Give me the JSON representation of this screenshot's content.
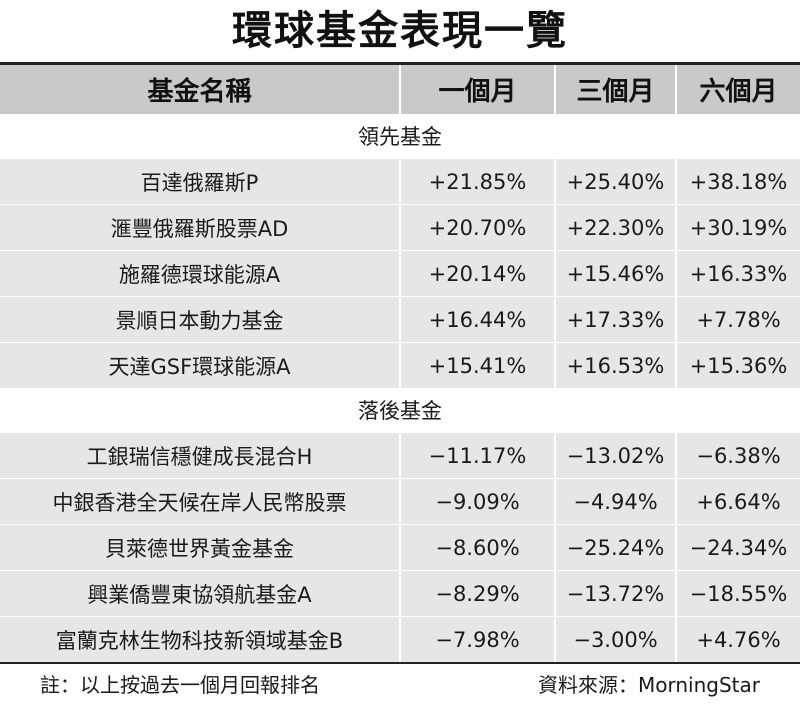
{
  "title": "環球基金表現一覽",
  "columns": [
    "基金名稱",
    "一個月",
    "三個月",
    "六個月"
  ],
  "sections": [
    {
      "label": "領先基金",
      "rows": [
        {
          "name": "百達俄羅斯P",
          "m1": "+21.85%",
          "m3": "+25.40%",
          "m6": "+38.18%"
        },
        {
          "name": "滙豐俄羅斯股票AD",
          "m1": "+20.70%",
          "m3": "+22.30%",
          "m6": "+30.19%"
        },
        {
          "name": "施羅德環球能源A",
          "m1": "+20.14%",
          "m3": "+15.46%",
          "m6": "+16.33%"
        },
        {
          "name": "景順日本動力基金",
          "m1": "+16.44%",
          "m3": "+17.33%",
          "m6": "+7.78%"
        },
        {
          "name": "天達GSF環球能源A",
          "m1": "+15.41%",
          "m3": "+16.53%",
          "m6": "+15.36%"
        }
      ]
    },
    {
      "label": "落後基金",
      "rows": [
        {
          "name": "工銀瑞信穩健成長混合H",
          "m1": "−11.17%",
          "m3": "−13.02%",
          "m6": "−6.38%"
        },
        {
          "name": "中銀香港全天候在岸人民幣股票",
          "m1": "−9.09%",
          "m3": "−4.94%",
          "m6": "+6.64%"
        },
        {
          "name": "貝萊德世界黃金基金",
          "m1": "−8.60%",
          "m3": "−25.24%",
          "m6": "−24.34%"
        },
        {
          "name": "興業僑豐東協領航基金A",
          "m1": "−8.29%",
          "m3": "−13.72%",
          "m6": "−18.55%"
        },
        {
          "name": "富蘭克林生物科技新領域基金B",
          "m1": "−7.98%",
          "m3": "−3.00%",
          "m6": "+4.76%"
        }
      ]
    }
  ],
  "footer": {
    "note": "註：以上按過去一個月回報排名",
    "source": "資料來源：MorningStar"
  }
}
